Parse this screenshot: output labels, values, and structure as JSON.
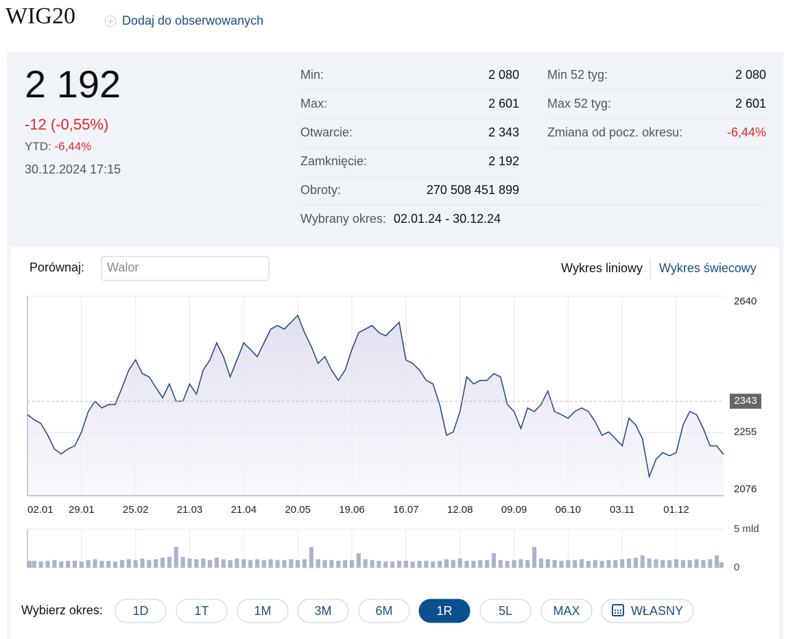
{
  "header": {
    "title": "WIG20",
    "watch": "Dodaj do obserwowanych"
  },
  "quote": {
    "price": "2 192",
    "change": "-12 (-0,55%)",
    "ytd_label": "YTD:",
    "ytd_value": "-6,44%",
    "timestamp": "30.12.2024 17:15"
  },
  "stats": {
    "left": [
      {
        "label": "Min:",
        "value": "2 080"
      },
      {
        "label": "Max:",
        "value": "2 601"
      },
      {
        "label": "Otwarcie:",
        "value": "2 343"
      },
      {
        "label": "Zamknięcie:",
        "value": "2 192"
      },
      {
        "label": "Obroty:",
        "value": "270 508 451 899"
      }
    ],
    "right": [
      {
        "label": "Min 52 tyg:",
        "value": "2 080"
      },
      {
        "label": "Max 52 tyg:",
        "value": "2 601"
      },
      {
        "label": "Zmiana od pocz. okresu:",
        "value": "-6,44%"
      }
    ],
    "period_label": "Wybrany okres:",
    "period_value": "02.01.24 - 30.12.24"
  },
  "compare": {
    "label": "Porównaj:",
    "placeholder": "Walor"
  },
  "chart_tabs": [
    "Wykres liniowy",
    "Wykres świecowy"
  ],
  "periods": {
    "label": "Wybierz okres:",
    "options": [
      "1D",
      "1T",
      "1M",
      "3M",
      "6M",
      "1R",
      "5L",
      "MAX",
      "WŁASNY"
    ],
    "active": "1R"
  },
  "chart_data": [
    {
      "type": "line",
      "color": "#2c4a8a",
      "values": [
        2305,
        2291,
        2280,
        2247,
        2208,
        2194,
        2208,
        2217,
        2256,
        2314,
        2343,
        2324,
        2334,
        2334,
        2382,
        2431,
        2460,
        2421,
        2412,
        2382,
        2353,
        2392,
        2343,
        2343,
        2392,
        2363,
        2431,
        2460,
        2508,
        2469,
        2412,
        2460,
        2508,
        2489,
        2469,
        2508,
        2547,
        2557,
        2547,
        2566,
        2586,
        2537,
        2498,
        2450,
        2469,
        2431,
        2402,
        2431,
        2489,
        2537,
        2547,
        2557,
        2537,
        2528,
        2547,
        2566,
        2460,
        2450,
        2431,
        2402,
        2392,
        2334,
        2247,
        2256,
        2314,
        2412,
        2392,
        2402,
        2402,
        2421,
        2412,
        2334,
        2314,
        2266,
        2324,
        2314,
        2334,
        2372,
        2314,
        2305,
        2295,
        2314,
        2324,
        2314,
        2285,
        2247,
        2256,
        2237,
        2217,
        2295,
        2276,
        2237,
        2130,
        2179,
        2198,
        2189,
        2198,
        2276,
        2314,
        2305,
        2266,
        2217,
        2217,
        2192
      ],
      "xlim": [
        0,
        103
      ],
      "xticks": [
        {
          "value": 0,
          "label": "02.01"
        },
        {
          "value": 8,
          "label": "29.01"
        },
        {
          "value": 16,
          "label": "25.02"
        },
        {
          "value": 24,
          "label": "21.03"
        },
        {
          "value": 32,
          "label": "21.04"
        },
        {
          "value": 40,
          "label": "20.05"
        },
        {
          "value": 48,
          "label": "19.06"
        },
        {
          "value": 56,
          "label": "16.07"
        },
        {
          "value": 64,
          "label": "12.08"
        },
        {
          "value": 72,
          "label": "09.09"
        },
        {
          "value": 80,
          "label": "06.10"
        },
        {
          "value": 88,
          "label": "03.11"
        },
        {
          "value": 96,
          "label": "01.12"
        }
      ],
      "ylim": [
        2076,
        2640
      ],
      "yticks": [
        2076,
        2255,
        2640
      ],
      "reference_line": 2343,
      "grid": true
    },
    {
      "type": "bar",
      "color": "#a9b4cc",
      "values": [
        0.9,
        0.9,
        0.8,
        0.9,
        1.0,
        0.8,
        0.9,
        0.9,
        0.8,
        1.0,
        1.1,
        0.9,
        0.9,
        0.8,
        1.0,
        1.1,
        1.0,
        1.2,
        1.0,
        1.1,
        1.3,
        1.4,
        2.7,
        1.4,
        1.2,
        1.1,
        1.2,
        1.0,
        1.3,
        1.1,
        1.0,
        1.2,
        1.1,
        1.0,
        1.1,
        1.0,
        1.1,
        1.0,
        1.0,
        1.1,
        1.0,
        1.1,
        2.7,
        1.1,
        1.0,
        1.0,
        0.9,
        1.0,
        1.0,
        1.9,
        1.1,
        1.0,
        0.9,
        0.8,
        0.8,
        0.9,
        0.9,
        0.8,
        0.9,
        0.9,
        0.8,
        0.9,
        1.1,
        1.0,
        1.2,
        0.9,
        0.9,
        1.0,
        1.0,
        1.9,
        1.0,
        0.9,
        1.0,
        1.1,
        1.0,
        2.7,
        1.2,
        1.1,
        1.0,
        0.9,
        1.0,
        1.0,
        1.1,
        0.9,
        1.0,
        0.9,
        1.0,
        1.0,
        1.1,
        1.2,
        1.3,
        1.6,
        1.2,
        1.1,
        1.0,
        1.0,
        1.1,
        1.0,
        1.0,
        1.1,
        1.0,
        1.1,
        1.6,
        0.7
      ],
      "ylim": [
        0,
        5
      ],
      "yticks": [
        0,
        {
          "value": 5,
          "label": "5 mld"
        }
      ]
    }
  ]
}
